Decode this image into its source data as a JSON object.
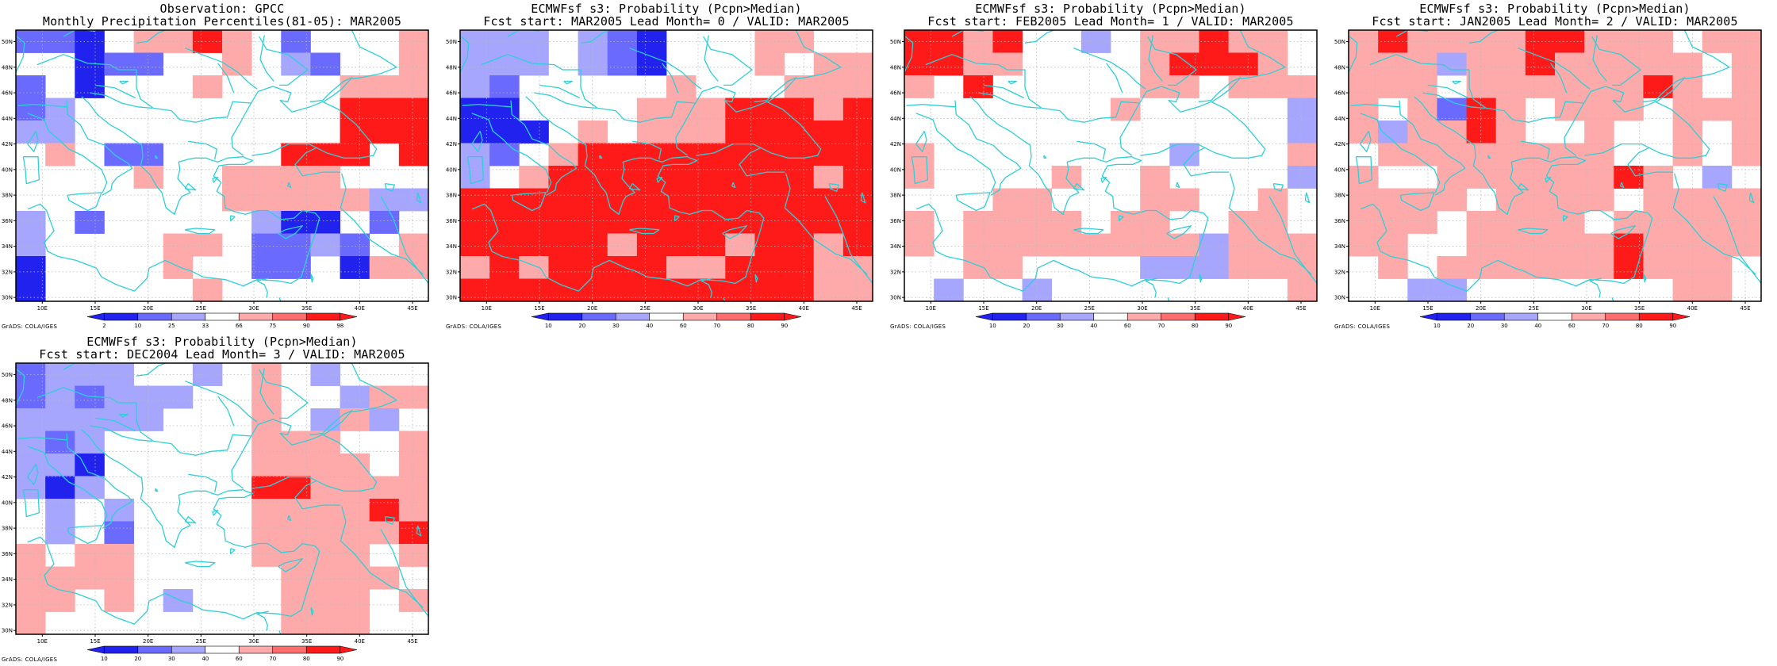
{
  "map": {
    "lon_labels": [
      "10E",
      "15E",
      "20E",
      "25E",
      "30E",
      "35E",
      "40E",
      "45E"
    ],
    "lat_labels": [
      "30N",
      "32N",
      "34N",
      "36N",
      "38N",
      "40N",
      "42N",
      "44N",
      "46N",
      "48N",
      "50N"
    ],
    "footer": "GrADS: COLA/IGES",
    "colors": {
      "coast": "#2ecfd6",
      "grid": "#b8b8b8",
      "frame": "#000000",
      "dark_blue": "#2222ee",
      "mid_blue": "#6a6aff",
      "light_blue": "#a6a6ff",
      "light_red": "#ffaaaa",
      "mid_red": "#ff6e6e",
      "dark_red": "#ff1a1a",
      "white": "#ffffff"
    }
  },
  "panels": [
    {
      "title_line1": "Observation: GPCC",
      "title_line2": "Monthly Precipitation Percentiles(81-05): MAR2005",
      "colorbar_labels": [
        "2",
        "10",
        "25",
        "33",
        "66",
        "75",
        "90",
        "98"
      ],
      "colorbar_colors": [
        "#2222ee",
        "#6a6aff",
        "#a6a6ff",
        "#ffffff",
        "#ffaaaa",
        "#ff6e6e",
        "#ff1a1a"
      ],
      "grid": [
        "mmbwrrdrwmwwwr",
        "wwbmmwwrwlmwwr",
        "mwbwwwrwwwwrrr",
        "mlwwwwwwwwwddd",
        "llwwwwwwwwwddd",
        "wrwmmwwwwdddwd",
        "wwwwrwwrrrrwww",
        "wwwwwwwrrrrrll",
        "lwmwwwwwlbbwmw",
        "lwwwwrrwmmlmwr",
        "bwwwwrwwmmwbrr",
        "bwwwwwrwwwwwww"
      ]
    },
    {
      "title_line1": "ECMWFsf s3: Probability (Pcpn>Median)",
      "title_line2": "Fcst start: MAR2005   Lead Month= 0 / VALID: MAR2005",
      "colorbar_labels": [
        "10",
        "20",
        "30",
        "40",
        "60",
        "70",
        "80",
        "90"
      ],
      "colorbar_colors": [
        "#2222ee",
        "#6a6aff",
        "#a6a6ff",
        "#ffffff",
        "#ffaaaa",
        "#ff6e6e",
        "#ff1a1a"
      ],
      "grid": [
        "lllwlmbwwwrrww",
        "lllwlmbwwwrwrr",
        "lmwwwwwrwwwrrr",
        "bbwwwwrrrdddrd",
        "bbbwrwrrrddddd",
        "lmwrdddddddddd",
        "lwrdddddddddrd",
        "dddddddddddddd",
        "dddddddddddddd",
        "dddddrdddrddrd",
        "rdrddddrrdddrr",
        "ddddddddddddrr"
      ]
    },
    {
      "title_line1": "ECMWFsf s3: Probability (Pcpn>Median)",
      "title_line2": "Fcst start: FEB2005   Lead Month= 1 / VALID: MAR2005",
      "colorbar_labels": [
        "10",
        "20",
        "30",
        "40",
        "60",
        "70",
        "80",
        "90"
      ],
      "colorbar_colors": [
        "#2222ee",
        "#6a6aff",
        "#a6a6ff",
        "#ffffff",
        "#ffaaaa",
        "#ff6e6e",
        "#ff1a1a"
      ],
      "grid": [
        "ddrdwwlwrrdrrw",
        "ddrrwwwwrdddrw",
        "rwdwwwwwrrwrrr",
        "wwwwwwwrwwwwwl",
        "wwwwwwwwwwwwwl",
        "rwwwwwwwwlwwwr",
        "rwwwwrwwrwwwwl",
        "wwwrrwwwrrwwrw",
        "rwrrrrwrrwwrrw",
        "rwrrrrrrrrlrrr",
        "wwrrwwwwlllrrr",
        "wlwwlwwwwwwwwr"
      ]
    },
    {
      "title_line1": "ECMWFsf s3: Probability (Pcpn>Median)",
      "title_line2": "Fcst start: JAN2005   Lead Month= 2 / VALID: MAR2005",
      "colorbar_labels": [
        "10",
        "20",
        "30",
        "40",
        "60",
        "70",
        "80",
        "90"
      ],
      "colorbar_colors": [
        "#2222ee",
        "#6a6aff",
        "#a6a6ff",
        "#ffffff",
        "#ffaaaa",
        "#ff6e6e",
        "#ff1a1a"
      ],
      "grid": [
        "rdrrrrddrrrwrr",
        "rrrlrrdrrrrrwr",
        "rrrwrrrrrrdrwr",
        "rwrmdrwrrrwrrr",
        "rlrrdrwwrwwrwr",
        "wrrrrrrrrwwrwr",
        "rwwrrrrrrdrwlw",
        "rrrrwrrrrwrrrr",
        "rrrwrrrrwrrrrr",
        "rrwwrrrrrdrrrr",
        "wrwrrrrrrdrrrw",
        "wwllwwwwwwwrrw"
      ]
    },
    {
      "title_line1": "ECMWFsf s3: Probability (Pcpn>Median)",
      "title_line2": "Fcst start: DEC2004   Lead Month= 3 / VALID: MAR2005",
      "colorbar_labels": [
        "10",
        "20",
        "30",
        "40",
        "60",
        "70",
        "80",
        "90"
      ],
      "colorbar_colors": [
        "#2222ee",
        "#6a6aff",
        "#a6a6ff",
        "#ffffff",
        "#ffaaaa",
        "#ff6e6e",
        "#ff1a1a"
      ],
      "grid": [
        "mlllwwlwrwlwww",
        "mlmlllwwrwwlrr",
        "lllllwwwrwlrlw",
        "lmlwwwwwrrrwwr",
        "llbwwwwwrrrrwr",
        "lblwwwwwddrrrr",
        "wlwlwwwwrrrrdr",
        "wlwmwwwwrrrrrd",
        "rwrrwwwwrrrrwr",
        "rrrrwwwwwrrrrw",
        "rrwrwlwwwrrrwr",
        "rwwwwwwwwrrrww"
      ]
    }
  ]
}
